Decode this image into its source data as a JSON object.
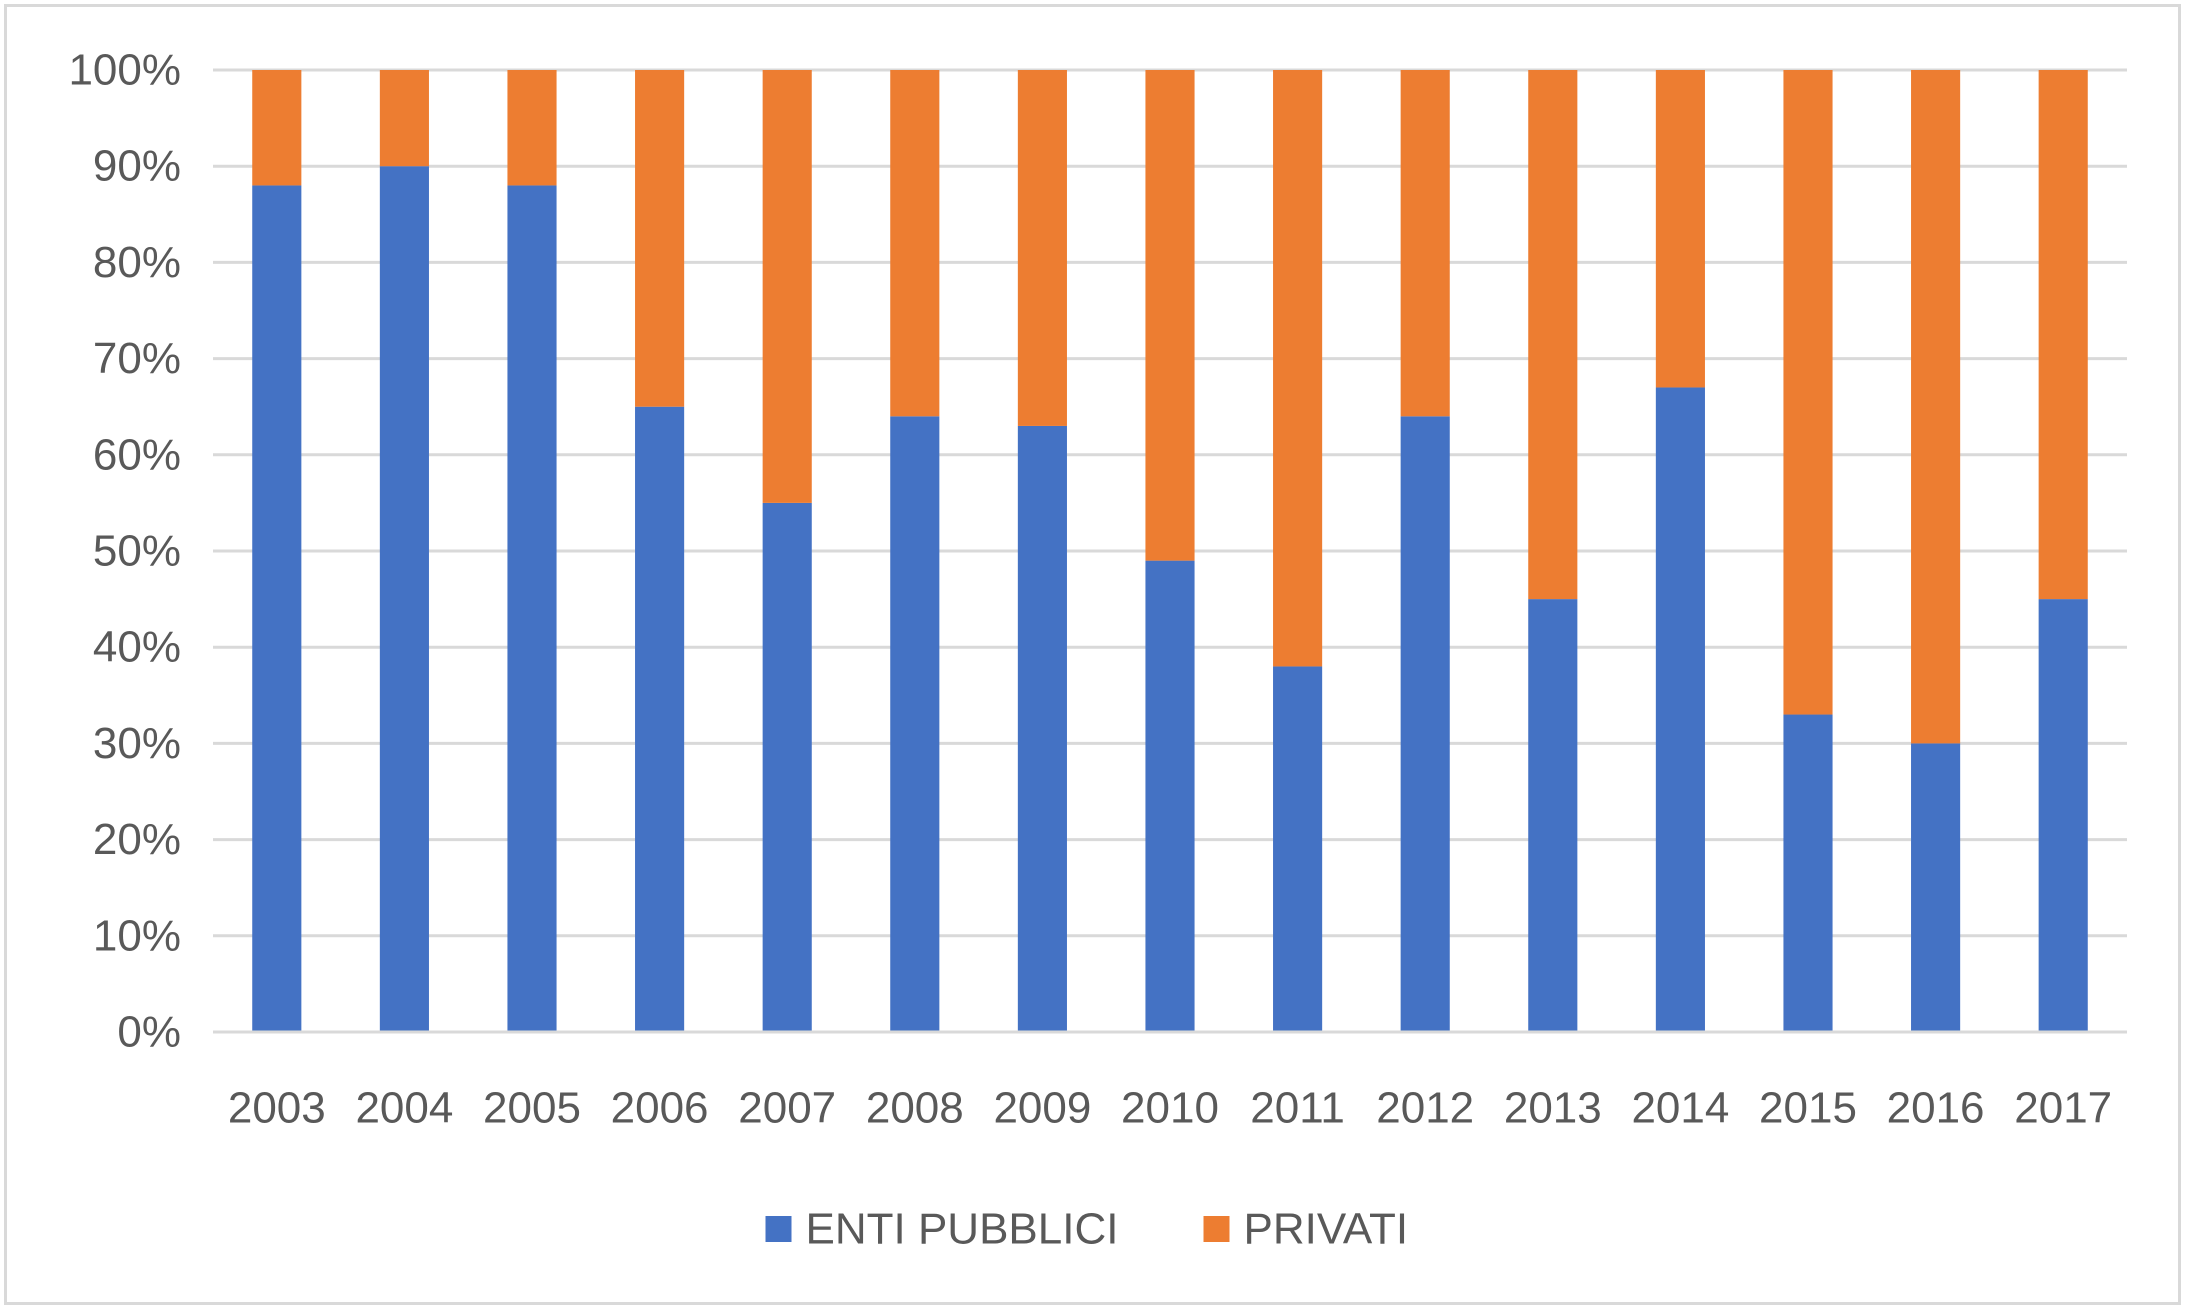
{
  "chart_data": {
    "type": "bar",
    "stacked": true,
    "percent_stacked": true,
    "title": "",
    "xlabel": "",
    "ylabel": "",
    "categories": [
      "2003",
      "2004",
      "2005",
      "2006",
      "2007",
      "2008",
      "2009",
      "2010",
      "2011",
      "2012",
      "2013",
      "2014",
      "2015",
      "2016",
      "2017"
    ],
    "series": [
      {
        "name": "ENTI PUBBLICI",
        "color": "#4472c4",
        "values": [
          88,
          90,
          88,
          65,
          55,
          64,
          63,
          49,
          38,
          64,
          45,
          67,
          33,
          30,
          45
        ]
      },
      {
        "name": "PRIVATI",
        "color": "#ed7d31",
        "values": [
          12,
          10,
          12,
          35,
          45,
          36,
          37,
          51,
          62,
          36,
          55,
          33,
          67,
          70,
          55
        ]
      }
    ],
    "ylim": [
      0,
      100
    ],
    "y_ticks": [
      "0%",
      "10%",
      "20%",
      "30%",
      "40%",
      "50%",
      "60%",
      "70%",
      "80%",
      "90%",
      "100%"
    ],
    "grid": true,
    "gridline_color": "#d9d9d9",
    "tick_label_color": "#595959",
    "legend_position": "bottom"
  }
}
